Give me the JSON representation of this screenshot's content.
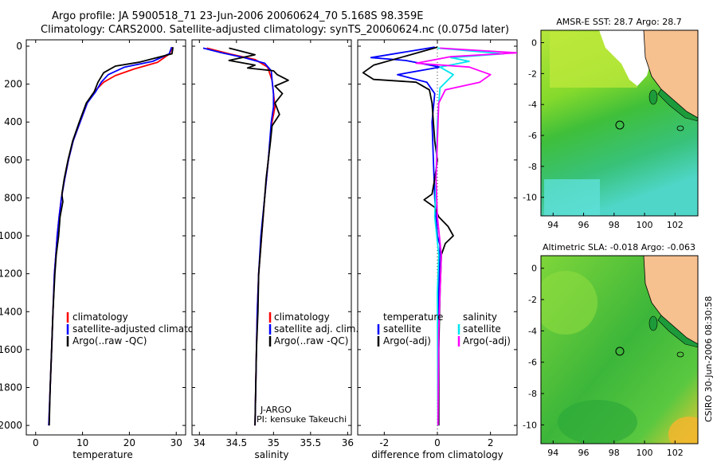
{
  "header": {
    "line1": "Argo profile: JA 5900518_71 23-Jun-2006 20060624_70 5.168S 98.359E",
    "line2": "Climatology: CARS2000. Satellite-adjusted climatology: synTS_20060624.nc (0.075d later)"
  },
  "colors": {
    "climatology": "#ff0000",
    "satellite": "#0000ff",
    "argo": "#000000",
    "sal_satellite": "#00e5ee",
    "sal_argo": "#ff00ff",
    "land": "#f7c08f"
  },
  "chart_data": [
    {
      "type": "line",
      "id": "temperature",
      "xlabel": "temperature",
      "ylabel": "",
      "xlim": [
        -2,
        32
      ],
      "ylim": [
        0,
        2050
      ],
      "y_inverted": true,
      "xticks": [
        0,
        10,
        20,
        30
      ],
      "yticks": [
        0,
        200,
        400,
        600,
        800,
        1000,
        1200,
        1400,
        1600,
        1800,
        2000
      ],
      "legend": [
        "climatology",
        "satellite-adjusted climatology",
        "Argo(..raw -QC)"
      ],
      "series": [
        {
          "name": "climatology",
          "color": "#ff0000",
          "points": [
            [
              29.2,
              5
            ],
            [
              28.6,
              40
            ],
            [
              26,
              85
            ],
            [
              21,
              120
            ],
            [
              17,
              155
            ],
            [
              14.5,
              190
            ],
            [
              12.5,
              240
            ],
            [
              11,
              300
            ],
            [
              9.5,
              400
            ],
            [
              8,
              500
            ],
            [
              7,
              600
            ],
            [
              6.2,
              700
            ],
            [
              5.5,
              800
            ],
            [
              5,
              900
            ],
            [
              4.6,
              1000
            ],
            [
              4.3,
              1100
            ],
            [
              4,
              1200
            ],
            [
              3.7,
              1400
            ],
            [
              3.4,
              1600
            ],
            [
              3.1,
              1800
            ],
            [
              2.8,
              2000
            ]
          ]
        },
        {
          "name": "satellite-adjusted climatology",
          "color": "#0000ff",
          "points": [
            [
              29,
              5
            ],
            [
              28.5,
              40
            ],
            [
              25,
              80
            ],
            [
              19,
              110
            ],
            [
              15.5,
              150
            ],
            [
              14,
              190
            ],
            [
              12.8,
              240
            ],
            [
              11,
              300
            ],
            [
              9.5,
              400
            ],
            [
              8,
              500
            ],
            [
              7,
              600
            ],
            [
              6.2,
              700
            ],
            [
              5.5,
              800
            ],
            [
              5,
              900
            ],
            [
              4.6,
              1000
            ],
            [
              4.3,
              1100
            ],
            [
              4,
              1200
            ],
            [
              3.7,
              1400
            ],
            [
              3.4,
              1600
            ],
            [
              3.1,
              1800
            ],
            [
              2.8,
              2000
            ]
          ]
        },
        {
          "name": "Argo(..raw -QC)",
          "color": "#000000",
          "points": [
            [
              29.3,
              5
            ],
            [
              29.1,
              40
            ],
            [
              22,
              85
            ],
            [
              17,
              105
            ],
            [
              14.5,
              140
            ],
            [
              13.3,
              190
            ],
            [
              12.5,
              240
            ],
            [
              10.8,
              300
            ],
            [
              9.3,
              400
            ],
            [
              7.9,
              500
            ],
            [
              6.9,
              600
            ],
            [
              6.1,
              700
            ],
            [
              5.6,
              780
            ],
            [
              5.8,
              820
            ],
            [
              5.2,
              900
            ],
            [
              4.9,
              1000
            ],
            [
              4.4,
              1100
            ],
            [
              4.1,
              1200
            ],
            [
              3.7,
              1400
            ],
            [
              3.4,
              1600
            ],
            [
              3.1,
              1800
            ],
            [
              2.9,
              2000
            ]
          ]
        }
      ]
    },
    {
      "type": "line",
      "id": "salinity",
      "xlabel": "salinity",
      "xlim": [
        33.9,
        36.05
      ],
      "ylim": [
        0,
        2050
      ],
      "y_inverted": true,
      "xticks": [
        34,
        34.5,
        35,
        35.5,
        36
      ],
      "legend": [
        "climatology",
        "satellite adj. clim.",
        "Argo(..raw -QC)"
      ],
      "annotation": [
        "J-ARGO",
        "PI: kensuke Takeuchi"
      ],
      "series": [
        {
          "name": "climatology",
          "color": "#ff0000",
          "points": [
            [
              34.1,
              10
            ],
            [
              34.4,
              40
            ],
            [
              34.75,
              70
            ],
            [
              34.92,
              110
            ],
            [
              34.98,
              180
            ],
            [
              35.0,
              250
            ],
            [
              35.02,
              320
            ],
            [
              34.98,
              400
            ],
            [
              34.93,
              600
            ],
            [
              34.88,
              800
            ],
            [
              34.84,
              1000
            ],
            [
              34.8,
              1200
            ],
            [
              34.78,
              1400
            ],
            [
              34.77,
              1600
            ],
            [
              34.76,
              1800
            ],
            [
              34.75,
              2000
            ]
          ]
        },
        {
          "name": "satellite adj. clim.",
          "color": "#0000ff",
          "points": [
            [
              34.05,
              10
            ],
            [
              34.3,
              35
            ],
            [
              34.6,
              60
            ],
            [
              34.88,
              90
            ],
            [
              34.97,
              130
            ],
            [
              34.98,
              180
            ],
            [
              35.0,
              250
            ],
            [
              35.0,
              320
            ],
            [
              34.97,
              400
            ],
            [
              34.93,
              600
            ],
            [
              34.88,
              800
            ],
            [
              34.83,
              1000
            ],
            [
              34.8,
              1200
            ],
            [
              34.78,
              1400
            ],
            [
              34.77,
              1600
            ],
            [
              34.76,
              1800
            ],
            [
              34.75,
              2000
            ]
          ]
        },
        {
          "name": "Argo(..raw -QC)",
          "color": "#000000",
          "points": [
            [
              34.4,
              10
            ],
            [
              34.75,
              45
            ],
            [
              34.4,
              75
            ],
            [
              34.75,
              100
            ],
            [
              34.65,
              115
            ],
            [
              35.0,
              130
            ],
            [
              35.05,
              150
            ],
            [
              35.2,
              180
            ],
            [
              35.02,
              210
            ],
            [
              35.12,
              250
            ],
            [
              35.02,
              300
            ],
            [
              35.08,
              360
            ],
            [
              34.98,
              420
            ],
            [
              34.96,
              500
            ],
            [
              34.93,
              600
            ],
            [
              34.9,
              700
            ],
            [
              34.88,
              800
            ],
            [
              34.86,
              900
            ],
            [
              34.84,
              1000
            ],
            [
              34.82,
              1100
            ],
            [
              34.8,
              1200
            ],
            [
              34.79,
              1400
            ],
            [
              34.77,
              1600
            ],
            [
              34.76,
              1800
            ],
            [
              34.75,
              2000
            ]
          ]
        }
      ]
    },
    {
      "type": "line",
      "id": "difference",
      "xlabel": "difference from climatology",
      "xlim": [
        -3,
        3
      ],
      "ylim": [
        0,
        2050
      ],
      "y_inverted": true,
      "xticks": [
        -2,
        0,
        2
      ],
      "legend_left_title": "temperature",
      "legend_left": [
        "satellite",
        "Argo(-adj)"
      ],
      "legend_right_title": "salinity",
      "legend_right": [
        "satellite",
        "Argo(-adj)"
      ],
      "series": [
        {
          "name": "temperature satellite",
          "color": "#0000ff",
          "points": [
            [
              -0.1,
              5
            ],
            [
              -2.5,
              60
            ],
            [
              -1.2,
              75
            ],
            [
              0.1,
              110
            ],
            [
              -1.5,
              150
            ],
            [
              -0.4,
              190
            ],
            [
              -0.1,
              250
            ],
            [
              -0.2,
              400
            ],
            [
              -0.15,
              600
            ],
            [
              -0.1,
              800
            ],
            [
              0,
              1000
            ],
            [
              0.1,
              1050
            ],
            [
              0.05,
              1300
            ],
            [
              0.05,
              2000
            ]
          ]
        },
        {
          "name": "temperature Argo(-adj)",
          "color": "#000000",
          "points": [
            [
              0,
              5
            ],
            [
              -2.4,
              100
            ],
            [
              -2.8,
              140
            ],
            [
              -2.4,
              175
            ],
            [
              -0.8,
              190
            ],
            [
              -0.3,
              230
            ],
            [
              -0.2,
              300
            ],
            [
              -0.1,
              500
            ],
            [
              0,
              600
            ],
            [
              -0.1,
              700
            ],
            [
              -0.2,
              780
            ],
            [
              -0.5,
              810
            ],
            [
              -0.1,
              850
            ],
            [
              0.05,
              900
            ],
            [
              0.4,
              950
            ],
            [
              0.6,
              1000
            ],
            [
              0.3,
              1040
            ],
            [
              0.15,
              1100
            ],
            [
              0.1,
              1300
            ],
            [
              0.05,
              1600
            ],
            [
              0.05,
              2000
            ]
          ]
        },
        {
          "name": "salinity satellite",
          "color": "#00e5ee",
          "points": [
            [
              0,
              10
            ],
            [
              2.5,
              40
            ],
            [
              0.5,
              60
            ],
            [
              1.2,
              80
            ],
            [
              0.1,
              110
            ],
            [
              0.6,
              150
            ],
            [
              0.1,
              220
            ],
            [
              0,
              400
            ],
            [
              -0.05,
              700
            ],
            [
              -0.1,
              900
            ],
            [
              0.05,
              1100
            ],
            [
              0,
              1300
            ],
            [
              0.02,
              2000
            ]
          ]
        },
        {
          "name": "salinity Argo(-adj)",
          "color": "#ff00ff",
          "points": [
            [
              0.1,
              10
            ],
            [
              3,
              35
            ],
            [
              0.5,
              55
            ],
            [
              -0.8,
              90
            ],
            [
              1.2,
              110
            ],
            [
              2,
              150
            ],
            [
              1.6,
              190
            ],
            [
              0.3,
              230
            ],
            [
              0.05,
              300
            ],
            [
              0,
              500
            ],
            [
              -0.05,
              700
            ],
            [
              0,
              900
            ],
            [
              0.15,
              1100
            ],
            [
              0.1,
              1300
            ],
            [
              0.05,
              1500
            ],
            [
              0.02,
              2000
            ]
          ]
        }
      ]
    }
  ],
  "maps": [
    {
      "title": "AMSR-E SST: 28.7 Argo: 28.7",
      "xticks": [
        94,
        96,
        98,
        100,
        102
      ],
      "yticks": [
        0,
        -2,
        -4,
        -6,
        -8,
        -10
      ],
      "lon": [
        93.2,
        103.5
      ],
      "lat": [
        -11.2,
        0.8
      ],
      "float_lon": 98.359,
      "float_lat": -5.168
    },
    {
      "title": "Altimetric SLA: -0.018 Argo: -0.063",
      "xticks": [
        94,
        96,
        98,
        100,
        102
      ],
      "yticks": [
        0,
        -2,
        -4,
        -6,
        -8,
        -10
      ],
      "lon": [
        93.2,
        103.5
      ],
      "lat": [
        -11.2,
        0.8
      ],
      "float_lon": 98.359,
      "float_lat": -5.168
    }
  ],
  "side_label": "CSIRO 30-Jun-2006 08:30:58"
}
